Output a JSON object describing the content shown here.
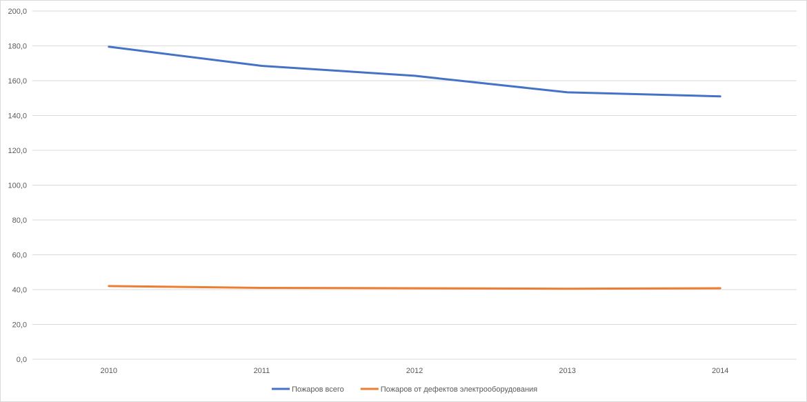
{
  "chart_data": {
    "type": "line",
    "categories": [
      "2010",
      "2011",
      "2012",
      "2013",
      "2014"
    ],
    "series": [
      {
        "name": "Пожаров всего",
        "values": [
          179.5,
          168.5,
          162.8,
          153.3,
          151.0
        ],
        "color": "#4472C4"
      },
      {
        "name": "Пожаров от дефектов электрооборудования",
        "values": [
          42.0,
          41.0,
          40.8,
          40.5,
          40.8
        ],
        "color": "#ED7D31"
      }
    ],
    "ylim": [
      0,
      200
    ],
    "yticks": [
      "0,0",
      "20,0",
      "40,0",
      "60,0",
      "80,0",
      "100,0",
      "120,0",
      "140,0",
      "160,0",
      "180,0",
      "200,0"
    ],
    "grid": true,
    "legend": "bottom-center"
  }
}
